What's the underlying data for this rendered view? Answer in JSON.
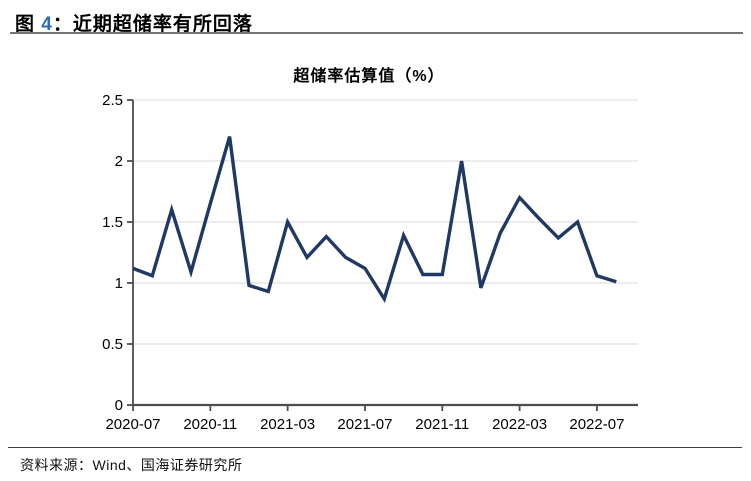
{
  "header": {
    "figure_label": "图 ",
    "figure_number": "4",
    "figure_title": "：近期超储率有所回落"
  },
  "footer": {
    "source": "资料来源：Wind、国海证券研究所"
  },
  "colors": {
    "line": "#1F3864",
    "gridline": "#D9D9D9",
    "axis": "#4D4D4D",
    "tick_label": "#000000",
    "figure_number_accent": "#2E6AB8",
    "top_rule": "#757575",
    "bottom_rule": "#3D3D3D"
  },
  "chart_data": {
    "type": "line",
    "title": "超储率估算值（%）",
    "xlabel": "",
    "ylabel": "",
    "categories": [
      "2020-07",
      "2020-08",
      "2020-09",
      "2020-10",
      "2020-11",
      "2020-12",
      "2021-01",
      "2021-02",
      "2021-03",
      "2021-04",
      "2021-05",
      "2021-06",
      "2021-07",
      "2021-08",
      "2021-09",
      "2021-10",
      "2021-11",
      "2021-12",
      "2022-01",
      "2022-02",
      "2022-03",
      "2022-04",
      "2022-05",
      "2022-06",
      "2022-07",
      "2022-08"
    ],
    "values": [
      1.12,
      1.06,
      1.6,
      1.09,
      1.65,
      2.2,
      0.98,
      0.93,
      1.5,
      1.21,
      1.38,
      1.21,
      1.12,
      0.87,
      1.39,
      1.07,
      1.07,
      2.0,
      0.96,
      1.41,
      1.7,
      1.53,
      1.37,
      1.5,
      1.06,
      1.01
    ],
    "series_name": "超储率估算值",
    "x_tick_indices": [
      0,
      4,
      8,
      12,
      16,
      20,
      24
    ],
    "x_tick_labels": [
      "2020-07",
      "2020-11",
      "2021-03",
      "2021-07",
      "2021-11",
      "2022-03",
      "2022-07"
    ],
    "y_ticks": [
      0,
      0.5,
      1,
      1.5,
      2,
      2.5
    ],
    "y_tick_labels": [
      "0",
      "0.5",
      "1",
      "1.5",
      "2",
      "2.5"
    ],
    "ylim": [
      0,
      2.5
    ],
    "grid": "horizontal-only",
    "legend": "none"
  }
}
